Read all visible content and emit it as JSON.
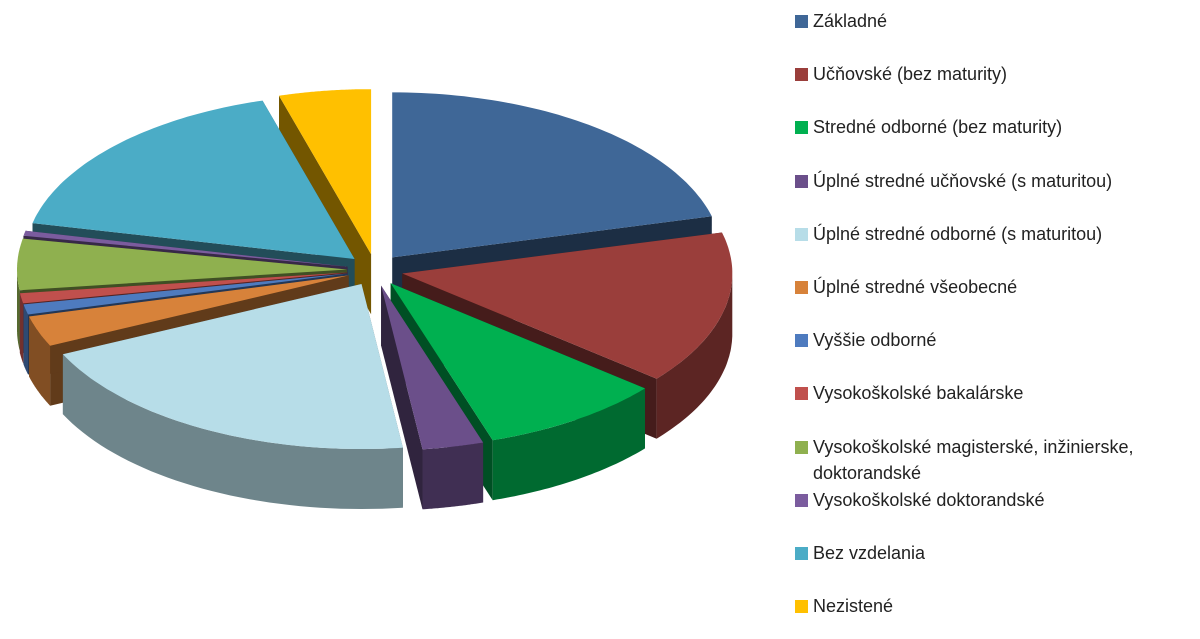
{
  "chart_data": {
    "type": "pie3d",
    "categories": [
      "Základné",
      "Učňovské (bez maturity)",
      "Stredné odborné (bez maturity)",
      "Úplné stredné učňovské (s maturitou)",
      "Úplné stredné odborné (s maturitou)",
      "Úplné stredné všeobecné",
      "Vyššie odborné",
      "Vysokoškolské bakalárske",
      "Vysokoškolské magisterské, inžinierske, doktorandské",
      "Vysokoškolské doktorandské",
      "Bez vzdelania",
      "Nezistené"
    ],
    "values": [
      21,
      15,
      9,
      3,
      20,
      3,
      1,
      1,
      5,
      0.5,
      17,
      4.5
    ],
    "colors": [
      "#3F6797",
      "#9A3E3B",
      "#00B050",
      "#6B4F8A",
      "#B7DDE8",
      "#D7823A",
      "#4E7BBF",
      "#C0504D",
      "#8FB04F",
      "#7B5C9E",
      "#4BACC6",
      "#FFC000"
    ],
    "legend": "right"
  }
}
